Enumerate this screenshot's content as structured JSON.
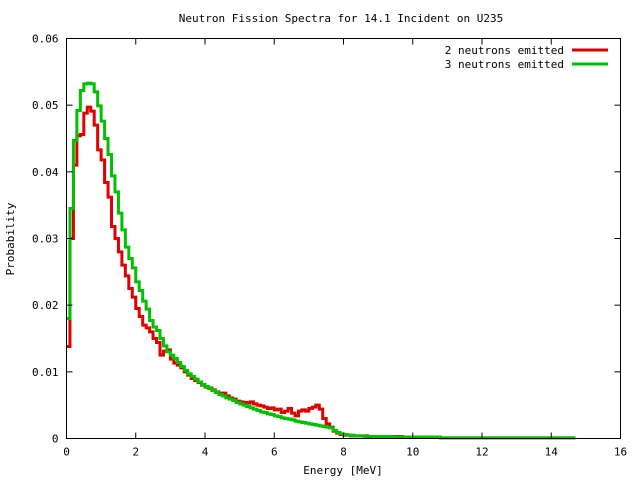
{
  "chart_data": {
    "type": "line",
    "title": "Neutron Fission Spectra for 14.1 Incident on U235",
    "xlabel": "Energy [MeV]",
    "ylabel": "Probability",
    "xlim": [
      0,
      16
    ],
    "ylim": [
      0,
      0.06
    ],
    "x_ticks": [
      "0",
      "2",
      "4",
      "6",
      "8",
      "10",
      "12",
      "14",
      "16"
    ],
    "y_ticks": [
      "0",
      "0.01",
      "0.02",
      "0.03",
      "0.04",
      "0.05",
      "0.06"
    ],
    "grid": false,
    "legend": "top-right",
    "line_style": "histogram-steps",
    "bin_start": 0,
    "bin_width": 0.1,
    "series": [
      {
        "name": "2 neutrons emitted",
        "color": "#e00000",
        "values": [
          0.0138,
          0.03,
          0.041,
          0.0454,
          0.0456,
          0.0488,
          0.0497,
          0.0491,
          0.047,
          0.0433,
          0.0418,
          0.0384,
          0.0362,
          0.0318,
          0.03,
          0.028,
          0.026,
          0.0244,
          0.0225,
          0.0212,
          0.0195,
          0.0183,
          0.017,
          0.0166,
          0.016,
          0.015,
          0.0144,
          0.0125,
          0.0131,
          0.0133,
          0.0119,
          0.0113,
          0.011,
          0.0106,
          0.01,
          0.0095,
          0.009,
          0.0087,
          0.0084,
          0.008,
          0.0077,
          0.0076,
          0.0073,
          0.007,
          0.0068,
          0.0068,
          0.0064,
          0.0061,
          0.0059,
          0.0056,
          0.0055,
          0.0054,
          0.0053,
          0.0055,
          0.0052,
          0.005,
          0.0049,
          0.0047,
          0.0045,
          0.0046,
          0.0043,
          0.0044,
          0.0039,
          0.0041,
          0.0045,
          0.0038,
          0.0034,
          0.0041,
          0.0043,
          0.0041,
          0.0045,
          0.0047,
          0.005,
          0.0044,
          0.003,
          0.0022,
          0.0017,
          0.0011,
          0.0008,
          0.0006,
          0.0005,
          0.0005,
          0.0004,
          0.0004,
          0.0004,
          0.0004,
          0.0004,
          0.0003,
          0.0003,
          0.0003,
          0.0003,
          0.0003,
          0.0003,
          0.0003,
          0.0003,
          0.0003,
          0.0003,
          0.0002,
          0.0002,
          0.0002,
          0.0002,
          0.0002,
          0.0002,
          0.0002,
          0.0002,
          0.0002,
          0.0002,
          0.0002,
          0.0001,
          0.0001,
          0.0001,
          0.0001,
          0.0001,
          0.0001,
          0.0001,
          0.0001,
          0.0001,
          0.0001,
          0.0001,
          0.0001,
          0.0001,
          0.0001,
          0.0001,
          0.0001,
          0.0001,
          0.0001,
          0.0001,
          0.0001,
          0.0001,
          0.0001,
          0.0001,
          0.0001,
          0.0001,
          0.0001,
          0.0001,
          0.0001,
          0.0001,
          0.0001,
          0.0001,
          0.0001,
          0.0001,
          0.0001,
          0.0001,
          0.0001,
          0.0001,
          0.0001,
          0.0001
        ]
      },
      {
        "name": "3 neutrons emitted",
        "color": "#00c000",
        "values": [
          0.018,
          0.0345,
          0.0447,
          0.0492,
          0.0522,
          0.0532,
          0.0533,
          0.0532,
          0.052,
          0.0499,
          0.0476,
          0.045,
          0.0426,
          0.0394,
          0.037,
          0.0338,
          0.0313,
          0.0287,
          0.027,
          0.0256,
          0.0235,
          0.0222,
          0.0206,
          0.0194,
          0.0177,
          0.0167,
          0.0162,
          0.015,
          0.0139,
          0.013,
          0.0125,
          0.012,
          0.0114,
          0.0108,
          0.0102,
          0.0097,
          0.0093,
          0.0089,
          0.0085,
          0.0081,
          0.0078,
          0.0075,
          0.0072,
          0.0069,
          0.0066,
          0.0064,
          0.0061,
          0.0059,
          0.0057,
          0.0054,
          0.0052,
          0.005,
          0.0048,
          0.0046,
          0.0044,
          0.0042,
          0.004,
          0.0039,
          0.0037,
          0.0036,
          0.0034,
          0.0033,
          0.0031,
          0.003,
          0.0029,
          0.0028,
          0.0026,
          0.0025,
          0.0024,
          0.0023,
          0.0022,
          0.0021,
          0.002,
          0.0019,
          0.0018,
          0.0017,
          0.0016,
          0.0012,
          0.0009,
          0.0007,
          0.0006,
          0.0005,
          0.0005,
          0.0004,
          0.0004,
          0.0004,
          0.0003,
          0.0003,
          0.0003,
          0.0003,
          0.0003,
          0.0003,
          0.0003,
          0.0003,
          0.0002,
          0.0002,
          0.0002,
          0.0002,
          0.0002,
          0.0002,
          0.0002,
          0.0002,
          0.0002,
          0.0002,
          0.0002,
          0.0002,
          0.0002,
          0.0002,
          0.0001,
          0.0001,
          0.0001,
          0.0001,
          0.0001,
          0.0001,
          0.0001,
          0.0001,
          0.0001,
          0.0001,
          0.0001,
          0.0001,
          0.0001,
          0.0001,
          0.0001,
          0.0001,
          0.0001,
          0.0001,
          0.0001,
          0.0001,
          0.0001,
          0.0001,
          0.0001,
          0.0001,
          0.0001,
          0.0001,
          0.0001,
          0.0001,
          0.0001,
          0.0001,
          0.0001,
          0.0001,
          0.0001,
          0.0001,
          0.0001,
          0.0001,
          0.0001,
          0.0001,
          0.0001
        ]
      }
    ]
  }
}
